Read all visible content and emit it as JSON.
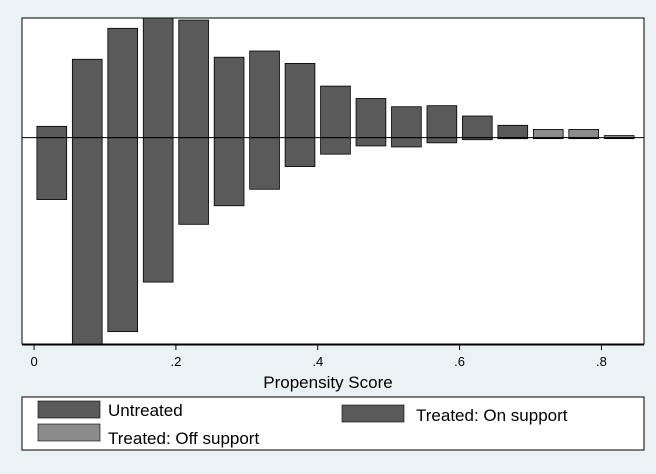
{
  "chart_data": {
    "type": "bar",
    "title": "",
    "xlabel": "Propensity Score",
    "ylabel": "",
    "xlim": [
      -0.017,
      0.86
    ],
    "ylim": [
      -1.0,
      0.58
    ],
    "x_ticks": [
      0,
      0.2,
      0.4,
      0.6,
      0.8
    ],
    "x_tick_labels": [
      "0",
      ".2",
      ".4",
      ".6",
      ".8"
    ],
    "grid": false,
    "legend_position": "bottom",
    "bin_width": 0.05,
    "colors": {
      "untreated": "#5a5a5a",
      "treated_on_support": "#5a5a5a",
      "treated_off_support": "#8c8c8c",
      "plot_bg": "#ffffff",
      "outer_bg": "#eaf2f3",
      "frame": "#000000"
    },
    "series": [
      {
        "name": "Untreated",
        "direction": "below",
        "bin_centers": [
          0.025,
          0.075,
          0.125,
          0.175,
          0.225,
          0.275,
          0.325,
          0.375,
          0.425,
          0.475,
          0.525,
          0.575,
          0.625,
          0.675,
          0.725,
          0.775,
          0.825
        ],
        "values": [
          0.3,
          1.0,
          0.94,
          0.7,
          0.42,
          0.33,
          0.25,
          0.14,
          0.08,
          0.04,
          0.045,
          0.025,
          0.01,
          0.005,
          0.003,
          0.002,
          0.001
        ]
      },
      {
        "name": "Treated: On support",
        "direction": "above",
        "bin_centers": [
          0.025,
          0.075,
          0.125,
          0.175,
          0.225,
          0.275,
          0.325,
          0.375,
          0.425,
          0.475,
          0.525,
          0.575,
          0.625,
          0.675
        ],
        "values": [
          0.055,
          0.38,
          0.53,
          0.58,
          0.57,
          0.39,
          0.42,
          0.36,
          0.25,
          0.19,
          0.15,
          0.155,
          0.105,
          0.06
        ]
      },
      {
        "name": "Treated: Off support",
        "direction": "above",
        "bin_centers": [
          0.725,
          0.775,
          0.825
        ],
        "values": [
          0.04,
          0.04,
          0.01
        ]
      }
    ]
  }
}
